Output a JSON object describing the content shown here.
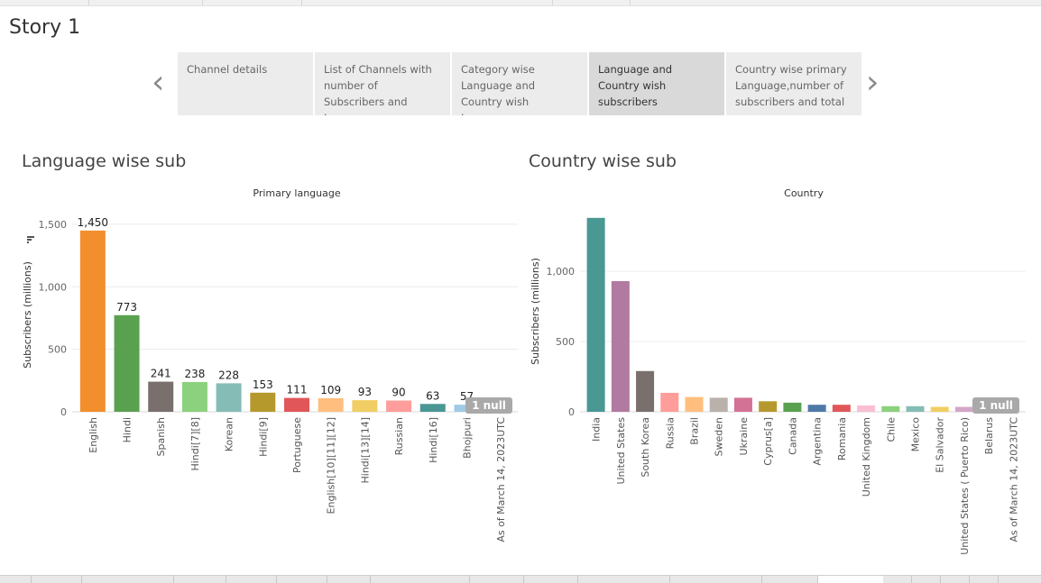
{
  "story": {
    "title": "Story 1"
  },
  "nav": {
    "prev_icon": "chevron-left-icon",
    "next_icon": "chevron-right-icon"
  },
  "tabs": [
    {
      "label": "Channel details",
      "active": false
    },
    {
      "label": "List of Channels with number of Subscribers and Language",
      "active": false
    },
    {
      "label": "Category wise Language and Country wish Language",
      "active": false
    },
    {
      "label": "Language and Country wish subscribers",
      "active": true
    },
    {
      "label": "Country wise primary Language,number of subscribers and total",
      "active": false
    }
  ],
  "language_sheet": {
    "title": "Language wise sub",
    "null_badge": "1 null",
    "sort_icon": "sort-icon"
  },
  "country_sheet": {
    "title": "Country wise sub",
    "null_badge": "1 null"
  },
  "chart_data": [
    {
      "type": "bar",
      "title": "Primary language",
      "xlabel": "",
      "ylabel": "Subscribers (millions)",
      "ylim": [
        0,
        1550
      ],
      "yticks": [
        0,
        500,
        1000,
        1500
      ],
      "grid": true,
      "categories": [
        "English",
        "Hindi",
        "Spanish",
        "Hindi[7][8]",
        "Korean",
        "Hindi[9]",
        "Portuguese",
        "English[10][11][12]",
        "Hindi[13][14]",
        "Russian",
        "Hindi[16]",
        "Bhojpuri",
        "As of March 14, 2023UTC"
      ],
      "values": [
        1450,
        773,
        241,
        238,
        228,
        153,
        111,
        109,
        93,
        90,
        63,
        57,
        null
      ],
      "labels": [
        "1,450",
        "773",
        "241",
        "238",
        "228",
        "153",
        "111",
        "109",
        "93",
        "90",
        "63",
        "57",
        ""
      ],
      "colors": [
        "#f28e2b",
        "#59a14f",
        "#79706e",
        "#8cd17d",
        "#86bcb6",
        "#b6992d",
        "#e15759",
        "#ffbe7d",
        "#f1ce63",
        "#ff9d9a",
        "#499894",
        "#a0cbe8",
        "#ffffff"
      ]
    },
    {
      "type": "bar",
      "title": "Country",
      "xlabel": "",
      "ylabel": "Subscribers (millions)",
      "ylim": [
        0,
        1430
      ],
      "yticks": [
        0,
        500,
        1000
      ],
      "grid": true,
      "categories": [
        "India",
        "United States",
        "South Korea",
        "Russia",
        "Brazil",
        "Sweden",
        "Ukraine",
        "Cyprus[a]",
        "Canada",
        "Argentina",
        "Romania",
        "United Kingdom",
        "Chile",
        "Mexico",
        "El Salvador",
        "United States ( Puerto Rico)",
        "Belarus",
        "As of March 14, 2023UTC"
      ],
      "values": [
        1380,
        930,
        290,
        135,
        105,
        100,
        100,
        75,
        65,
        50,
        50,
        45,
        40,
        40,
        35,
        35,
        30,
        null
      ],
      "colors": [
        "#499894",
        "#b07aa1",
        "#79706e",
        "#ff9d9a",
        "#ffbe7d",
        "#bab0ac",
        "#d37295",
        "#b6992d",
        "#59a14f",
        "#4e79a7",
        "#e15759",
        "#fabfd2",
        "#8cd17d",
        "#86bcb6",
        "#f1ce63",
        "#d4a6c8",
        "#f28e2b",
        "#ffffff"
      ]
    }
  ]
}
